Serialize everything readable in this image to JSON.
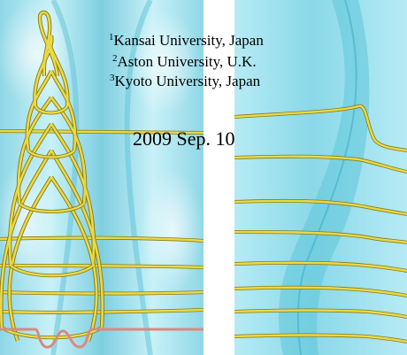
{
  "affiliations": [
    {
      "mark": "1",
      "name": "Kansai University, Japan"
    },
    {
      "mark": "2",
      "name": "Aston University, U.K."
    },
    {
      "mark": "3",
      "name": "Kyoto University, Japan"
    }
  ],
  "date": "2009 Sep. 10",
  "colors": {
    "surface": "#a8e4f0",
    "surface_dark": "#6ccfe0",
    "curve": "#e8d94a",
    "curve_dark": "#8a7a10",
    "base_curve": "#d98a80"
  }
}
